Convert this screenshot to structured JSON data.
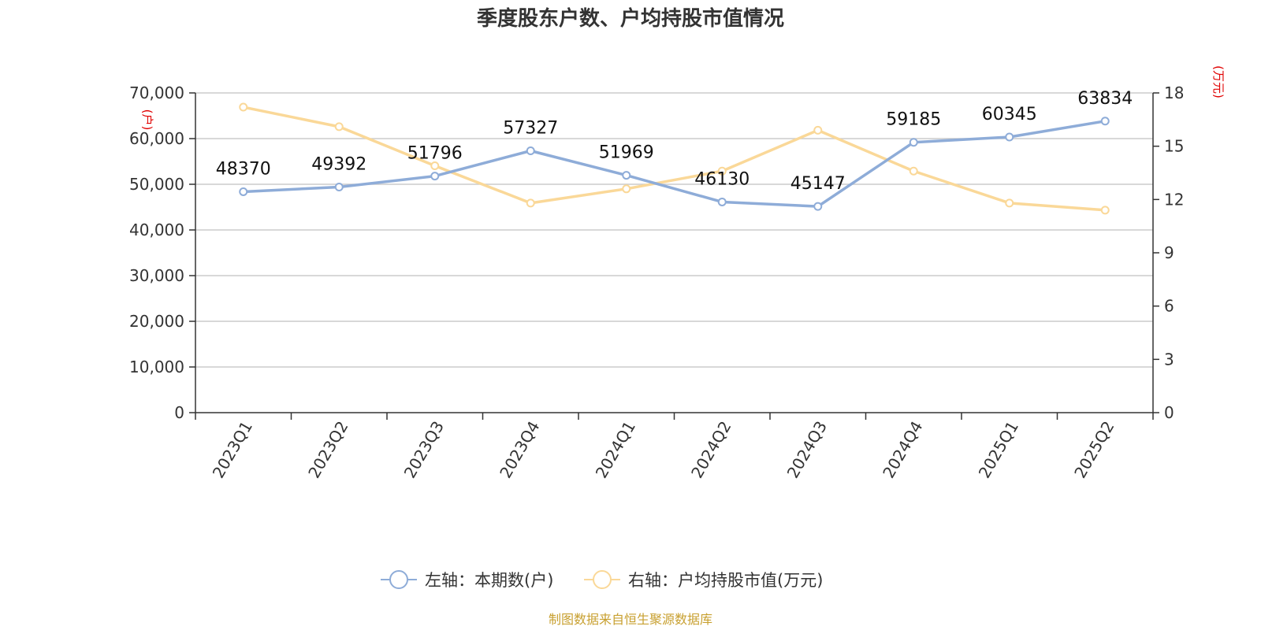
{
  "chart_data": {
    "type": "line",
    "title": "季度股东户数、户均持股市值情况",
    "categories": [
      "2023Q1",
      "2023Q2",
      "2023Q3",
      "2023Q4",
      "2024Q1",
      "2024Q2",
      "2024Q3",
      "2024Q4",
      "2025Q1",
      "2025Q2"
    ],
    "left_axis": {
      "unit": "(户)",
      "ylim": [
        0,
        70000
      ],
      "ticks": [
        0,
        10000,
        20000,
        30000,
        40000,
        50000,
        60000,
        70000
      ],
      "tick_labels": [
        "0",
        "10,000",
        "20,000",
        "30,000",
        "40,000",
        "50,000",
        "60,000",
        "70,000"
      ]
    },
    "right_axis": {
      "unit": "(万元)",
      "ylim": [
        0,
        18
      ],
      "ticks": [
        0,
        3,
        6,
        9,
        12,
        15,
        18
      ],
      "tick_labels": [
        "0",
        "3",
        "6",
        "9",
        "12",
        "15",
        "18"
      ]
    },
    "series": [
      {
        "name": "左轴：本期数(户)",
        "axis": "left",
        "color": "#8eacd8",
        "values": [
          48370,
          49392,
          51796,
          57327,
          51969,
          46130,
          45147,
          59185,
          60345,
          63834
        ],
        "labels": [
          "48370",
          "49392",
          "51796",
          "57327",
          "51969",
          "46130",
          "45147",
          "59185",
          "60345",
          "63834"
        ]
      },
      {
        "name": "右轴：户均持股市值(万元)",
        "axis": "right",
        "color": "#fad898",
        "values": [
          17.2,
          16.1,
          13.9,
          11.8,
          12.6,
          13.6,
          15.9,
          13.6,
          11.8,
          11.4
        ]
      }
    ],
    "grid": true,
    "legend_position": "bottom",
    "source": "制图数据来自恒生聚源数据库"
  }
}
